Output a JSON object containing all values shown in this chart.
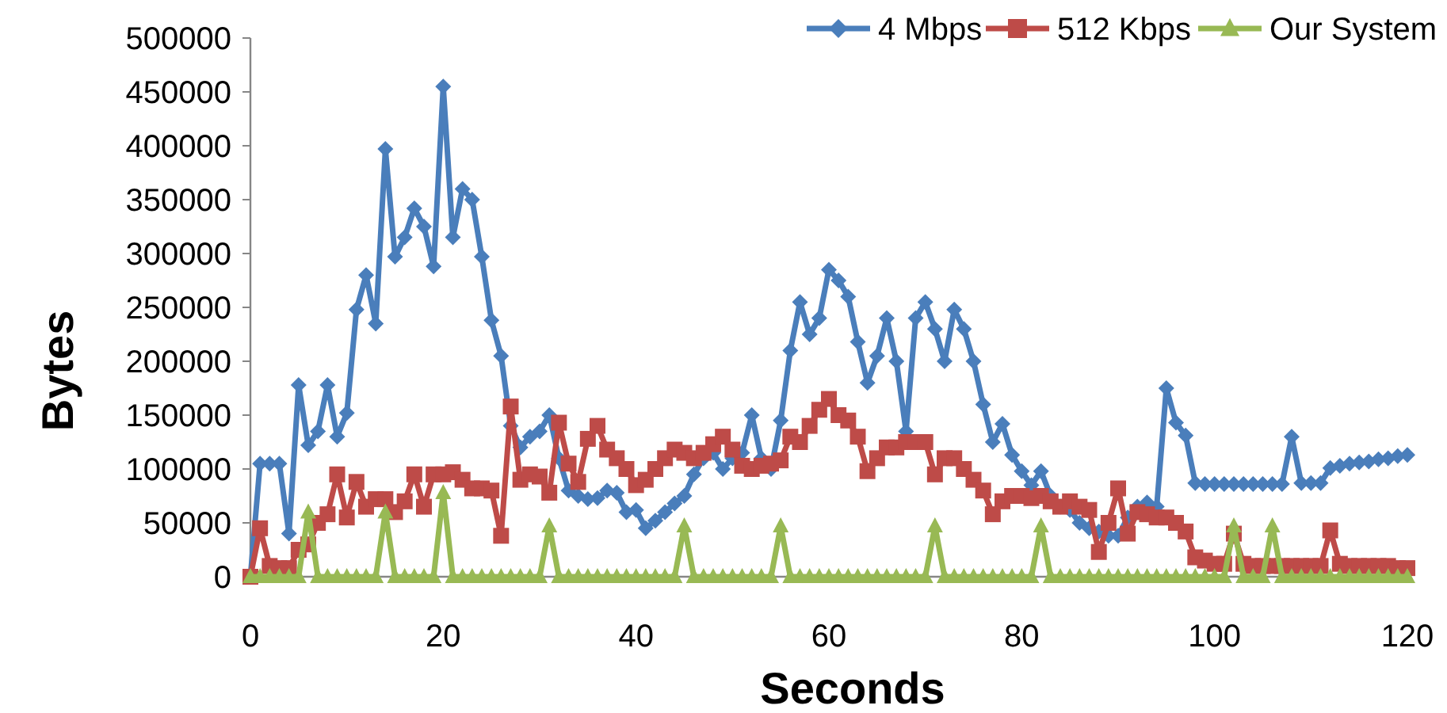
{
  "chart_data": {
    "type": "line",
    "xlabel": "Seconds",
    "ylabel": "Bytes",
    "xlim": [
      0,
      120
    ],
    "xticks": [
      0,
      20,
      40,
      60,
      80,
      100,
      120
    ],
    "ylim": [
      0,
      500000
    ],
    "yticks": [
      0,
      50000,
      100000,
      150000,
      200000,
      250000,
      300000,
      350000,
      400000,
      450000,
      500000
    ],
    "grid": false,
    "legend": "top right",
    "line_style": "solid",
    "x": [
      0,
      1,
      2,
      3,
      4,
      5,
      6,
      7,
      8,
      9,
      10,
      11,
      12,
      13,
      14,
      15,
      16,
      17,
      18,
      19,
      20,
      21,
      22,
      23,
      24,
      25,
      26,
      27,
      28,
      29,
      30,
      31,
      32,
      33,
      34,
      35,
      36,
      37,
      38,
      39,
      40,
      41,
      42,
      43,
      44,
      45,
      46,
      47,
      48,
      49,
      50,
      51,
      52,
      53,
      54,
      55,
      56,
      57,
      58,
      59,
      60,
      61,
      62,
      63,
      64,
      65,
      66,
      67,
      68,
      69,
      70,
      71,
      72,
      73,
      74,
      75,
      76,
      77,
      78,
      79,
      80,
      81,
      82,
      83,
      84,
      85,
      86,
      87,
      88,
      89,
      90,
      91,
      92,
      93,
      94,
      95,
      96,
      97,
      98,
      99,
      100,
      101,
      102,
      103,
      104,
      105,
      106,
      107,
      108,
      109,
      110,
      111,
      112,
      113,
      114,
      115,
      116,
      117,
      118,
      119,
      120
    ],
    "series": [
      {
        "name": "4 Mbps",
        "color": "#4a7ebb",
        "marker": "diamond",
        "values": [
          0,
          105000,
          105000,
          105000,
          40000,
          178000,
          122000,
          135000,
          178000,
          130000,
          152000,
          248000,
          280000,
          235000,
          397000,
          297000,
          315000,
          342000,
          325000,
          288000,
          455000,
          315000,
          360000,
          350000,
          297000,
          238000,
          205000,
          140000,
          120000,
          130000,
          135000,
          150000,
          110000,
          80000,
          75000,
          72000,
          73000,
          80000,
          78000,
          60000,
          62000,
          45000,
          52000,
          60000,
          68000,
          75000,
          95000,
          110000,
          115000,
          100000,
          110000,
          115000,
          150000,
          110000,
          100000,
          145000,
          210000,
          255000,
          225000,
          240000,
          285000,
          275000,
          260000,
          218000,
          180000,
          205000,
          240000,
          200000,
          135000,
          240000,
          255000,
          230000,
          200000,
          248000,
          230000,
          200000,
          160000,
          125000,
          142000,
          113000,
          98000,
          85000,
          98000,
          75000,
          65000,
          62000,
          50000,
          45000,
          42000,
          38000,
          38000,
          55000,
          65000,
          69000,
          65000,
          175000,
          143000,
          131000,
          87000,
          86000,
          86000,
          86000,
          86000,
          86000,
          86000,
          86000,
          86000,
          86000,
          130000,
          87000,
          87000,
          87000,
          101000,
          103000,
          105000,
          106000,
          107000,
          109000,
          110000,
          112000,
          113000
        ]
      },
      {
        "name": "512 Kbps",
        "color": "#be4b48",
        "marker": "square",
        "values": [
          0,
          45000,
          10000,
          8000,
          8000,
          25000,
          30000,
          50000,
          58000,
          95000,
          55000,
          88000,
          65000,
          72000,
          72000,
          60000,
          70000,
          95000,
          65000,
          95000,
          95000,
          97000,
          90000,
          82000,
          82000,
          80000,
          38000,
          158000,
          90000,
          95000,
          93000,
          78000,
          143000,
          105000,
          88000,
          128000,
          140000,
          118000,
          110000,
          100000,
          85000,
          90000,
          100000,
          110000,
          118000,
          115000,
          110000,
          115000,
          123000,
          130000,
          118000,
          103000,
          100000,
          103000,
          105000,
          108000,
          130000,
          125000,
          140000,
          155000,
          165000,
          150000,
          145000,
          130000,
          98000,
          110000,
          120000,
          120000,
          125000,
          125000,
          125000,
          95000,
          110000,
          110000,
          100000,
          90000,
          80000,
          58000,
          70000,
          75000,
          75000,
          73000,
          75000,
          70000,
          65000,
          70000,
          65000,
          62000,
          23000,
          50000,
          82000,
          40000,
          60000,
          58000,
          55000,
          55000,
          50000,
          42000,
          18000,
          15000,
          12000,
          12000,
          40000,
          12000,
          10000,
          10000,
          10000,
          10000,
          10000,
          10000,
          10000,
          10000,
          43000,
          12000,
          10000,
          10000,
          10000,
          10000,
          10000,
          8000,
          8000
        ]
      },
      {
        "name": "Our System",
        "color": "#98b954",
        "marker": "triangle",
        "values": [
          0,
          0,
          0,
          0,
          0,
          0,
          60000,
          0,
          0,
          0,
          0,
          0,
          0,
          0,
          60000,
          0,
          0,
          0,
          0,
          0,
          78000,
          0,
          0,
          0,
          0,
          0,
          0,
          0,
          0,
          0,
          0,
          47000,
          0,
          0,
          0,
          0,
          0,
          0,
          0,
          0,
          0,
          0,
          0,
          0,
          0,
          47000,
          0,
          0,
          0,
          0,
          0,
          0,
          0,
          0,
          0,
          47000,
          0,
          0,
          0,
          0,
          0,
          0,
          0,
          0,
          0,
          0,
          0,
          0,
          0,
          0,
          0,
          47000,
          0,
          0,
          0,
          0,
          0,
          0,
          0,
          0,
          0,
          0,
          47000,
          0,
          0,
          0,
          0,
          0,
          0,
          0,
          0,
          0,
          0,
          0,
          0,
          0,
          0,
          0,
          0,
          0,
          0,
          0,
          47000,
          0,
          0,
          0,
          47000,
          0,
          0,
          0,
          0,
          0,
          0,
          0,
          0,
          0,
          0,
          0,
          0,
          0,
          0
        ]
      }
    ]
  }
}
